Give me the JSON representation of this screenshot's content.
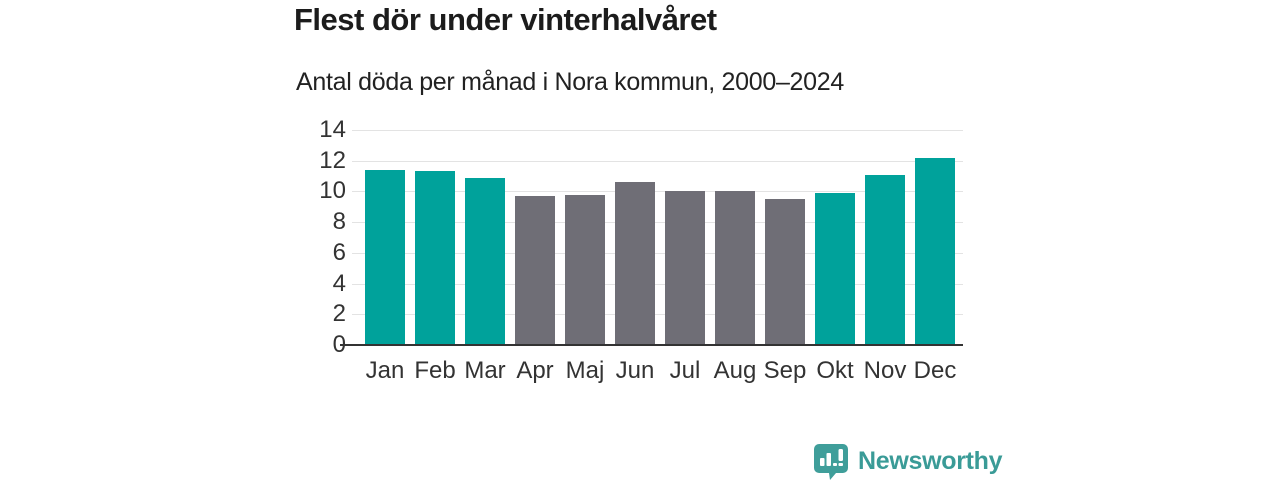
{
  "title": "Flest dör under vinterhalvåret",
  "subtitle": "Antal döda per månad i Nora kommun, 2000–2024",
  "branding": {
    "name": "Newsworthy"
  },
  "colors": {
    "teal": "#00a29b",
    "gray": "#6f6e76",
    "grid": "#e3e3e3",
    "axis_line": "#333333",
    "tick_text": "#333333",
    "title_text": "#1c1c1c",
    "brand_teal": "#3a9b97"
  },
  "chart_data": {
    "type": "bar",
    "title": "Flest dör under vinterhalvåret",
    "subtitle": "Antal döda per månad i Nora kommun, 2000–2024",
    "categories": [
      "Jan",
      "Feb",
      "Mar",
      "Apr",
      "Maj",
      "Jun",
      "Jul",
      "Aug",
      "Sep",
      "Okt",
      "Nov",
      "Dec"
    ],
    "values": [
      11.4,
      11.3,
      10.9,
      9.7,
      9.8,
      10.6,
      10.0,
      10.0,
      9.5,
      9.9,
      11.1,
      12.2
    ],
    "bar_colors": [
      "teal",
      "teal",
      "teal",
      "gray",
      "gray",
      "gray",
      "gray",
      "gray",
      "gray",
      "teal",
      "teal",
      "teal"
    ],
    "xlabel": "",
    "ylabel": "",
    "ylim": [
      0,
      14
    ],
    "yticks": [
      0,
      2,
      4,
      6,
      8,
      10,
      12,
      14
    ],
    "grid": "horizontal",
    "legend": "none"
  }
}
